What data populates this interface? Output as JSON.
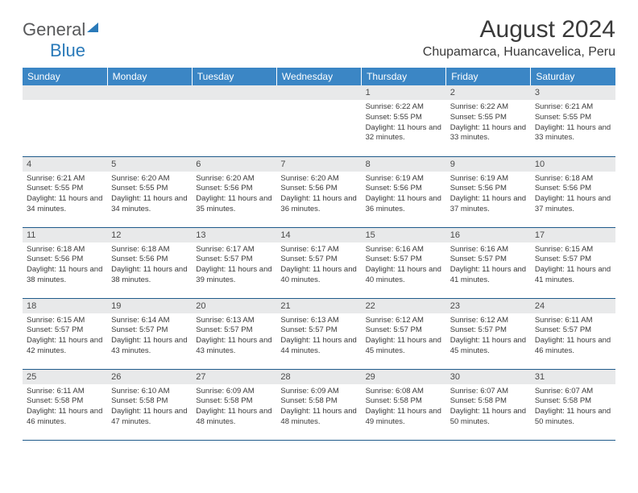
{
  "brand": {
    "general": "General",
    "blue": "Blue"
  },
  "title": "August 2024",
  "location": "Chupamarca, Huancavelica, Peru",
  "day_headers": [
    "Sunday",
    "Monday",
    "Tuesday",
    "Wednesday",
    "Thursday",
    "Friday",
    "Saturday"
  ],
  "colors": {
    "header_bg": "#3b86c5",
    "header_text": "#ffffff",
    "row_border": "#1f5a8a",
    "daynum_bg": "#e8e9ea",
    "logo_blue": "#2a7ab9",
    "logo_grey": "#58595b",
    "body_text": "#3a3a3a"
  },
  "weeks": [
    [
      {
        "num": "",
        "sunrise": "",
        "sunset": "",
        "daylight": ""
      },
      {
        "num": "",
        "sunrise": "",
        "sunset": "",
        "daylight": ""
      },
      {
        "num": "",
        "sunrise": "",
        "sunset": "",
        "daylight": ""
      },
      {
        "num": "",
        "sunrise": "",
        "sunset": "",
        "daylight": ""
      },
      {
        "num": "1",
        "sunrise": "Sunrise: 6:22 AM",
        "sunset": "Sunset: 5:55 PM",
        "daylight": "Daylight: 11 hours and 32 minutes."
      },
      {
        "num": "2",
        "sunrise": "Sunrise: 6:22 AM",
        "sunset": "Sunset: 5:55 PM",
        "daylight": "Daylight: 11 hours and 33 minutes."
      },
      {
        "num": "3",
        "sunrise": "Sunrise: 6:21 AM",
        "sunset": "Sunset: 5:55 PM",
        "daylight": "Daylight: 11 hours and 33 minutes."
      }
    ],
    [
      {
        "num": "4",
        "sunrise": "Sunrise: 6:21 AM",
        "sunset": "Sunset: 5:55 PM",
        "daylight": "Daylight: 11 hours and 34 minutes."
      },
      {
        "num": "5",
        "sunrise": "Sunrise: 6:20 AM",
        "sunset": "Sunset: 5:55 PM",
        "daylight": "Daylight: 11 hours and 34 minutes."
      },
      {
        "num": "6",
        "sunrise": "Sunrise: 6:20 AM",
        "sunset": "Sunset: 5:56 PM",
        "daylight": "Daylight: 11 hours and 35 minutes."
      },
      {
        "num": "7",
        "sunrise": "Sunrise: 6:20 AM",
        "sunset": "Sunset: 5:56 PM",
        "daylight": "Daylight: 11 hours and 36 minutes."
      },
      {
        "num": "8",
        "sunrise": "Sunrise: 6:19 AM",
        "sunset": "Sunset: 5:56 PM",
        "daylight": "Daylight: 11 hours and 36 minutes."
      },
      {
        "num": "9",
        "sunrise": "Sunrise: 6:19 AM",
        "sunset": "Sunset: 5:56 PM",
        "daylight": "Daylight: 11 hours and 37 minutes."
      },
      {
        "num": "10",
        "sunrise": "Sunrise: 6:18 AM",
        "sunset": "Sunset: 5:56 PM",
        "daylight": "Daylight: 11 hours and 37 minutes."
      }
    ],
    [
      {
        "num": "11",
        "sunrise": "Sunrise: 6:18 AM",
        "sunset": "Sunset: 5:56 PM",
        "daylight": "Daylight: 11 hours and 38 minutes."
      },
      {
        "num": "12",
        "sunrise": "Sunrise: 6:18 AM",
        "sunset": "Sunset: 5:56 PM",
        "daylight": "Daylight: 11 hours and 38 minutes."
      },
      {
        "num": "13",
        "sunrise": "Sunrise: 6:17 AM",
        "sunset": "Sunset: 5:57 PM",
        "daylight": "Daylight: 11 hours and 39 minutes."
      },
      {
        "num": "14",
        "sunrise": "Sunrise: 6:17 AM",
        "sunset": "Sunset: 5:57 PM",
        "daylight": "Daylight: 11 hours and 40 minutes."
      },
      {
        "num": "15",
        "sunrise": "Sunrise: 6:16 AM",
        "sunset": "Sunset: 5:57 PM",
        "daylight": "Daylight: 11 hours and 40 minutes."
      },
      {
        "num": "16",
        "sunrise": "Sunrise: 6:16 AM",
        "sunset": "Sunset: 5:57 PM",
        "daylight": "Daylight: 11 hours and 41 minutes."
      },
      {
        "num": "17",
        "sunrise": "Sunrise: 6:15 AM",
        "sunset": "Sunset: 5:57 PM",
        "daylight": "Daylight: 11 hours and 41 minutes."
      }
    ],
    [
      {
        "num": "18",
        "sunrise": "Sunrise: 6:15 AM",
        "sunset": "Sunset: 5:57 PM",
        "daylight": "Daylight: 11 hours and 42 minutes."
      },
      {
        "num": "19",
        "sunrise": "Sunrise: 6:14 AM",
        "sunset": "Sunset: 5:57 PM",
        "daylight": "Daylight: 11 hours and 43 minutes."
      },
      {
        "num": "20",
        "sunrise": "Sunrise: 6:13 AM",
        "sunset": "Sunset: 5:57 PM",
        "daylight": "Daylight: 11 hours and 43 minutes."
      },
      {
        "num": "21",
        "sunrise": "Sunrise: 6:13 AM",
        "sunset": "Sunset: 5:57 PM",
        "daylight": "Daylight: 11 hours and 44 minutes."
      },
      {
        "num": "22",
        "sunrise": "Sunrise: 6:12 AM",
        "sunset": "Sunset: 5:57 PM",
        "daylight": "Daylight: 11 hours and 45 minutes."
      },
      {
        "num": "23",
        "sunrise": "Sunrise: 6:12 AM",
        "sunset": "Sunset: 5:57 PM",
        "daylight": "Daylight: 11 hours and 45 minutes."
      },
      {
        "num": "24",
        "sunrise": "Sunrise: 6:11 AM",
        "sunset": "Sunset: 5:57 PM",
        "daylight": "Daylight: 11 hours and 46 minutes."
      }
    ],
    [
      {
        "num": "25",
        "sunrise": "Sunrise: 6:11 AM",
        "sunset": "Sunset: 5:58 PM",
        "daylight": "Daylight: 11 hours and 46 minutes."
      },
      {
        "num": "26",
        "sunrise": "Sunrise: 6:10 AM",
        "sunset": "Sunset: 5:58 PM",
        "daylight": "Daylight: 11 hours and 47 minutes."
      },
      {
        "num": "27",
        "sunrise": "Sunrise: 6:09 AM",
        "sunset": "Sunset: 5:58 PM",
        "daylight": "Daylight: 11 hours and 48 minutes."
      },
      {
        "num": "28",
        "sunrise": "Sunrise: 6:09 AM",
        "sunset": "Sunset: 5:58 PM",
        "daylight": "Daylight: 11 hours and 48 minutes."
      },
      {
        "num": "29",
        "sunrise": "Sunrise: 6:08 AM",
        "sunset": "Sunset: 5:58 PM",
        "daylight": "Daylight: 11 hours and 49 minutes."
      },
      {
        "num": "30",
        "sunrise": "Sunrise: 6:07 AM",
        "sunset": "Sunset: 5:58 PM",
        "daylight": "Daylight: 11 hours and 50 minutes."
      },
      {
        "num": "31",
        "sunrise": "Sunrise: 6:07 AM",
        "sunset": "Sunset: 5:58 PM",
        "daylight": "Daylight: 11 hours and 50 minutes."
      }
    ]
  ]
}
